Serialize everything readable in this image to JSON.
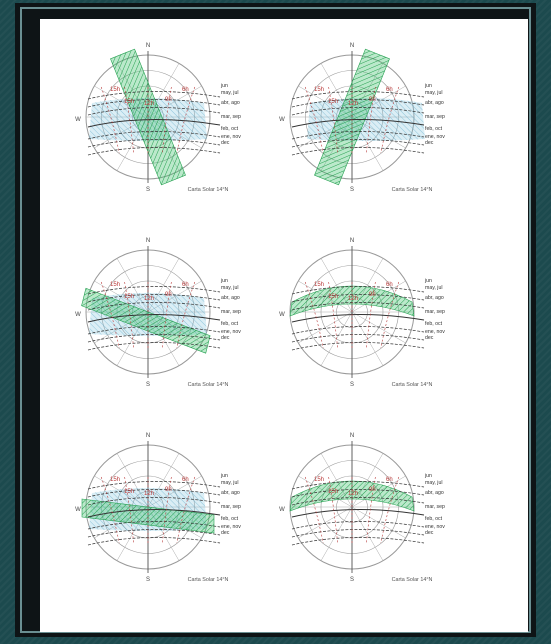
{
  "diagrams": [
    {
      "caption": "Carta Solar 14°N",
      "obstruction": "vertical",
      "tilt": -22
    },
    {
      "caption": "Carta Solar 14°N",
      "obstruction": "vertical",
      "tilt": 22
    },
    {
      "caption": "Carta Solar 14°N",
      "obstruction": "horizontal-band",
      "tilt": 14
    },
    {
      "caption": "Carta Solar 14°N",
      "obstruction": "dome-band",
      "tilt": 0
    },
    {
      "caption": "Carta Solar 14°N",
      "obstruction": "horizontal-band",
      "tilt": 0
    },
    {
      "caption": "Carta Solar 14°N",
      "obstruction": "dome-band",
      "tilt": 0
    }
  ],
  "labels": {
    "north": "N",
    "south": "S",
    "west": "W",
    "hour_left_outer": "15h",
    "hour_left_inner": "15h",
    "hour_center": "12h",
    "hour_right_inner": "9h",
    "hour_right_outer": "6h"
  },
  "months": [
    "jun",
    "may, jul",
    "abr, ago",
    "mar, sep",
    "feb, oct",
    "ene, nov",
    "dec"
  ],
  "colors": {
    "obstruction_green": "#3cbf6a",
    "shade_blue": "#7ec3dc",
    "hour_red": "#b83a3a",
    "lines": "#333333"
  }
}
